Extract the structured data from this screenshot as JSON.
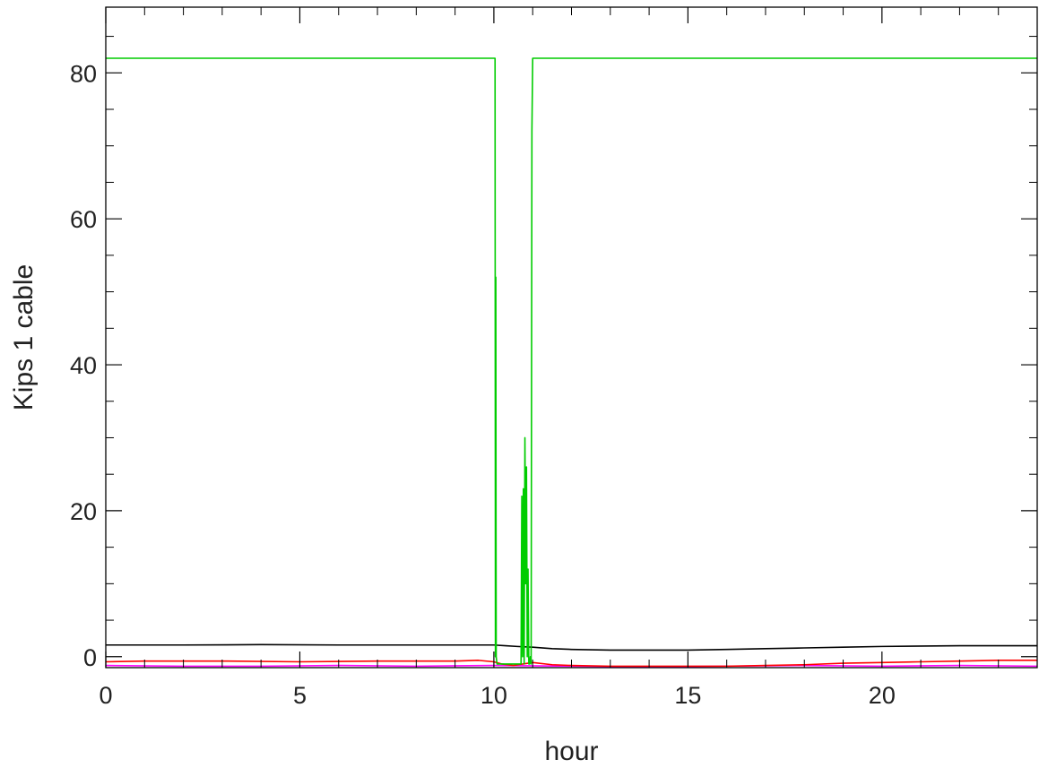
{
  "chart_data": {
    "type": "line",
    "title": "",
    "xlabel": "hour",
    "ylabel": "Kips 1 cable",
    "xlim": [
      0,
      24
    ],
    "ylim": [
      -1.5,
      89
    ],
    "x_ticks": [
      0,
      5,
      10,
      15,
      20
    ],
    "x_tick_labels": [
      "0",
      "5",
      "10",
      "15",
      "20"
    ],
    "y_ticks": [
      0,
      20,
      40,
      60,
      80
    ],
    "y_tick_labels": [
      "0",
      "20",
      "40",
      "60",
      "80"
    ],
    "x_minor_step": 1,
    "y_minor_step": 5,
    "grid": false,
    "legend": "none",
    "series": [
      {
        "color": "#ff00ff",
        "x": [
          0,
          2,
          4,
          6,
          8,
          10,
          12,
          14,
          16,
          18,
          20,
          22,
          24
        ],
        "y": [
          -1.2,
          -1.3,
          -1.3,
          -1.2,
          -1.3,
          -1.2,
          -1.3,
          -1.4,
          -1.3,
          -1.2,
          -1.3,
          -1.2,
          -1.3
        ]
      },
      {
        "color": "#ff0000",
        "x": [
          0,
          1,
          3,
          5,
          7,
          9,
          9.6,
          10,
          10.2,
          10.5,
          11,
          11.5,
          12,
          13,
          14,
          15,
          16,
          17,
          18,
          19,
          20,
          21,
          22,
          23,
          24
        ],
        "y": [
          -0.7,
          -0.6,
          -0.6,
          -0.7,
          -0.6,
          -0.6,
          -0.5,
          -0.7,
          -1.0,
          -1.2,
          -0.8,
          -1.1,
          -1.2,
          -1.3,
          -1.3,
          -1.3,
          -1.3,
          -1.2,
          -1.1,
          -0.9,
          -0.8,
          -0.7,
          -0.6,
          -0.5,
          -0.5
        ]
      },
      {
        "color": "#000000",
        "x": [
          0,
          2,
          4,
          6,
          8,
          10,
          10.3,
          10.6,
          11,
          11.5,
          12,
          13,
          14,
          15,
          16,
          17,
          18,
          19,
          20,
          22,
          24
        ],
        "y": [
          1.6,
          1.6,
          1.65,
          1.6,
          1.6,
          1.6,
          1.5,
          1.4,
          1.3,
          1.1,
          1.0,
          0.9,
          0.9,
          0.9,
          1.0,
          1.1,
          1.2,
          1.3,
          1.4,
          1.5,
          1.5
        ]
      },
      {
        "color": "#00cc00",
        "x": [
          0,
          10.03,
          10.04,
          10.05,
          10.055,
          10.06,
          10.08,
          10.1,
          10.15,
          10.3,
          10.5,
          10.6,
          10.7,
          10.72,
          10.74,
          10.76,
          10.78,
          10.8,
          10.82,
          10.84,
          10.86,
          10.88,
          10.9,
          10.92,
          10.94,
          10.96,
          10.98,
          11.0,
          11.02,
          11.04,
          11.06,
          11.08,
          24
        ],
        "y": [
          82,
          82,
          0,
          52,
          18,
          0,
          -1,
          -1,
          -1,
          -1,
          -1,
          -1,
          -1,
          22,
          0,
          23,
          -1,
          30,
          10,
          26,
          0,
          12,
          -1,
          -1,
          0,
          -1,
          72,
          82,
          82,
          82,
          82,
          82,
          82
        ]
      }
    ]
  }
}
